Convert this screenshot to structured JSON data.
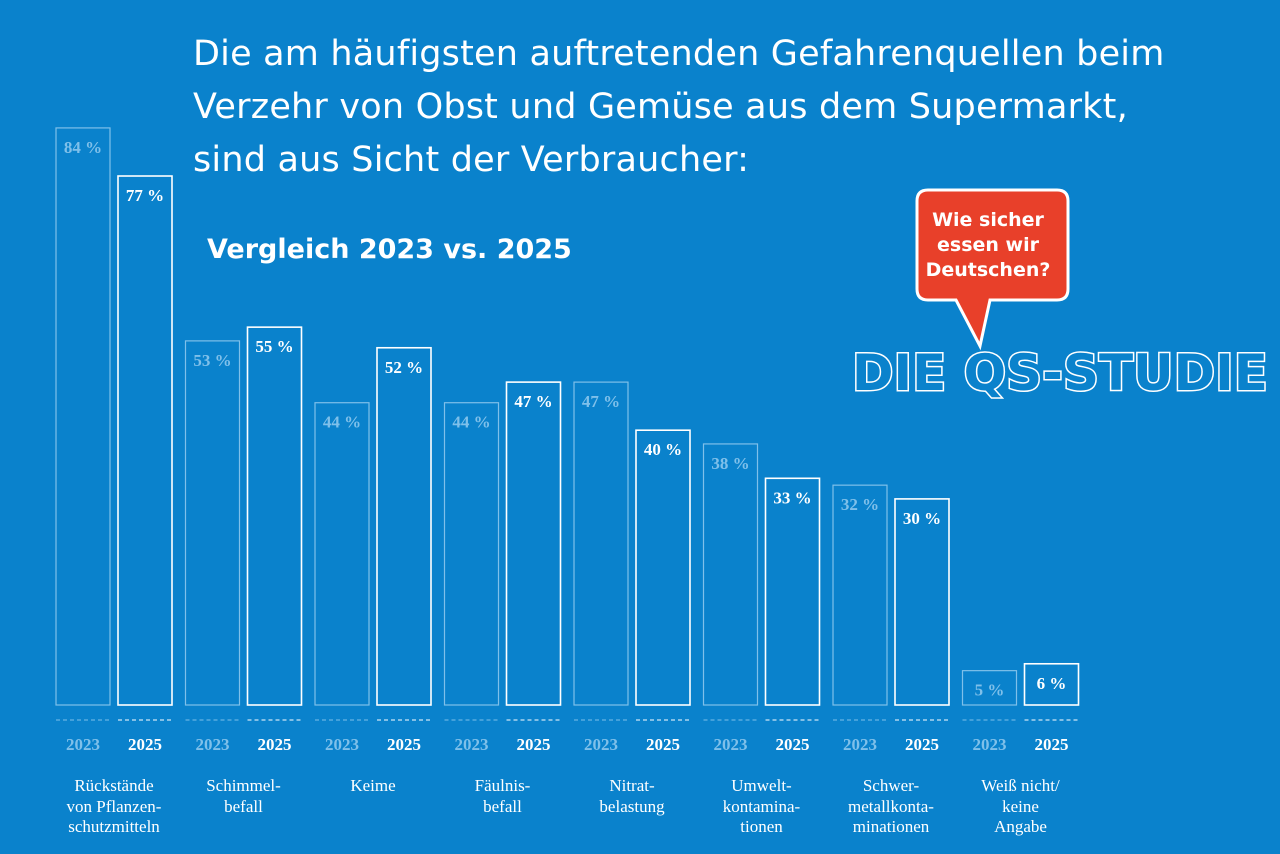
{
  "title_lines": [
    "Die am häufigsten auftretenden Gefahrenquellen beim",
    "Verzehr von Obst und Gemüse aus dem Supermarkt,",
    "sind aus Sicht der Verbraucher:"
  ],
  "subtitle": "Vergleich 2023 vs. 2025",
  "badge": {
    "bubble_lines": [
      "Wie sicher",
      "essen wir",
      "Deutschen?"
    ],
    "brand": "DIE QS-STUDIE",
    "bubble_color": "#e8402a"
  },
  "colors": {
    "background": "#0a82cc",
    "bar_2023_stroke": "#7fc0ea",
    "bar_2025_stroke": "#ffffff"
  },
  "chart_data": {
    "type": "bar",
    "categories": [
      [
        "Rückstände",
        "von Pflanzen-",
        "schutzmitteln"
      ],
      [
        "Schimmel-",
        "befall"
      ],
      [
        "Keime"
      ],
      [
        "Fäulnis-",
        "befall"
      ],
      [
        "Nitrat-",
        "belastung"
      ],
      [
        "Umwelt-",
        "kontamina-",
        "tionen"
      ],
      [
        "Schwer-",
        "metallkonta-",
        "minationen"
      ],
      [
        "Weiß nicht/",
        "keine",
        "Angabe"
      ]
    ],
    "series": [
      {
        "name": "2023",
        "values": [
          84,
          53,
          44,
          44,
          47,
          38,
          32,
          5
        ]
      },
      {
        "name": "2025",
        "values": [
          77,
          55,
          52,
          47,
          40,
          33,
          30,
          6
        ]
      }
    ],
    "value_suffix": " %",
    "ylim": [
      0,
      100
    ]
  }
}
